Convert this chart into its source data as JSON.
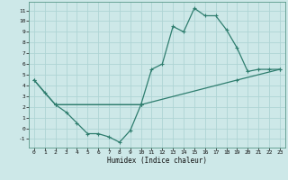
{
  "xlabel": "Humidex (Indice chaleur)",
  "bg_color": "#cde8e8",
  "grid_color": "#afd4d4",
  "line_color": "#2e7d6e",
  "xlim": [
    -0.5,
    23.5
  ],
  "ylim": [
    -1.8,
    11.8
  ],
  "xticks": [
    0,
    1,
    2,
    3,
    4,
    5,
    6,
    7,
    8,
    9,
    10,
    11,
    12,
    13,
    14,
    15,
    16,
    17,
    18,
    19,
    20,
    21,
    22,
    23
  ],
  "yticks": [
    -1,
    0,
    1,
    2,
    3,
    4,
    5,
    6,
    7,
    8,
    9,
    10,
    11
  ],
  "line1_x": [
    0,
    1,
    2,
    10,
    11,
    12,
    13,
    14,
    15,
    16,
    17,
    18,
    19,
    20,
    21,
    22,
    23
  ],
  "line1_y": [
    4.5,
    3.3,
    2.2,
    2.2,
    5.5,
    6.0,
    9.5,
    9.0,
    11.2,
    10.5,
    10.5,
    9.2,
    7.5,
    5.3,
    5.5,
    5.5,
    5.5
  ],
  "line2_x": [
    0,
    2,
    10,
    19,
    23
  ],
  "line2_y": [
    4.5,
    2.2,
    2.2,
    4.5,
    5.5
  ],
  "line3_x": [
    2,
    3,
    4,
    5,
    6,
    7,
    8,
    9,
    10
  ],
  "line3_y": [
    2.2,
    1.5,
    0.5,
    -0.5,
    -0.5,
    -0.8,
    -1.3,
    -0.2,
    2.2
  ]
}
